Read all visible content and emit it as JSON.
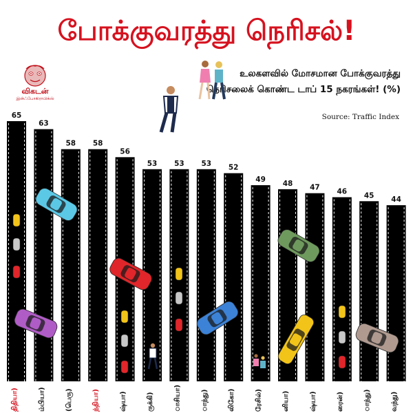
{
  "title": "போக்குவரத்து நெரிசல்!",
  "subtitle": "உலகளவில் மோசமான போக்குவரத்து நெரிசலைக் கொண்ட டாப் 15 நகரங்கள்! (%)",
  "source": "Source: Traffic Index",
  "logo": {
    "brand": "விகடன்",
    "tagline": "இன்ஃபோகிராபிக்ஸ்"
  },
  "colors": {
    "title": "#d6121f",
    "bar": "#000000",
    "lane": "#ffffff",
    "highlight_label": "#d6121f",
    "label": "#111111"
  },
  "chart_data": {
    "type": "bar",
    "title": "போக்குவரத்து நெரிசல்!",
    "ylim": [
      0,
      70
    ],
    "values": [
      65,
      63,
      58,
      58,
      56,
      53,
      53,
      53,
      52,
      49,
      48,
      47,
      46,
      45,
      44
    ],
    "categories": [
      "திதியா)",
      "ம்பியா)",
      "(பெரு)",
      "ந்தியா)",
      "ஷ்யா)",
      "ருக்கி)",
      "ாசியா)",
      "ாந்து)",
      "லிகோ)",
      "ரேசில்)",
      "னியா)",
      "ஷ்யா)",
      "ரைன்)",
      "ாந்து)",
      "வந்து)"
    ],
    "highlighted": [
      0,
      3
    ],
    "grid": false,
    "legend": "none"
  }
}
